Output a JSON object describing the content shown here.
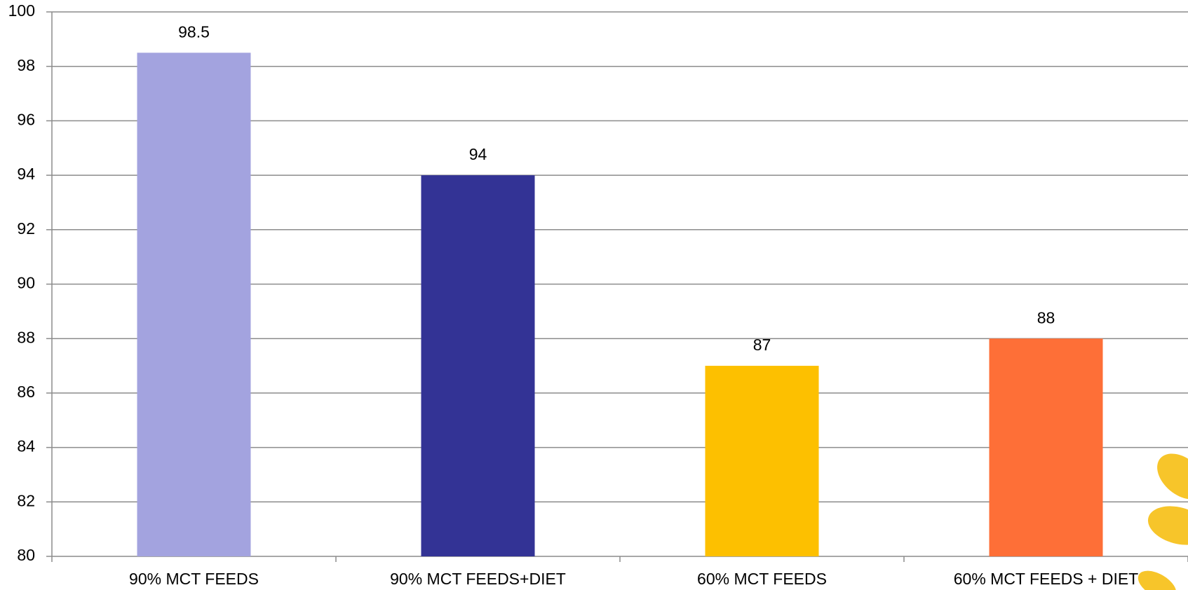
{
  "chart_data": {
    "type": "bar",
    "categories": [
      "90% MCT FEEDS",
      "90% MCT FEEDS+DIET",
      "60% MCT FEEDS",
      "60% MCT FEEDS + DIET"
    ],
    "values": [
      98.5,
      94,
      87,
      88
    ],
    "colors": [
      "#a3a3df",
      "#333395",
      "#fdc000",
      "#fe6f37"
    ],
    "ylim": [
      80,
      100
    ],
    "yticks": [
      80,
      82,
      84,
      86,
      88,
      90,
      92,
      94,
      96,
      98,
      100
    ],
    "grid": true
  }
}
